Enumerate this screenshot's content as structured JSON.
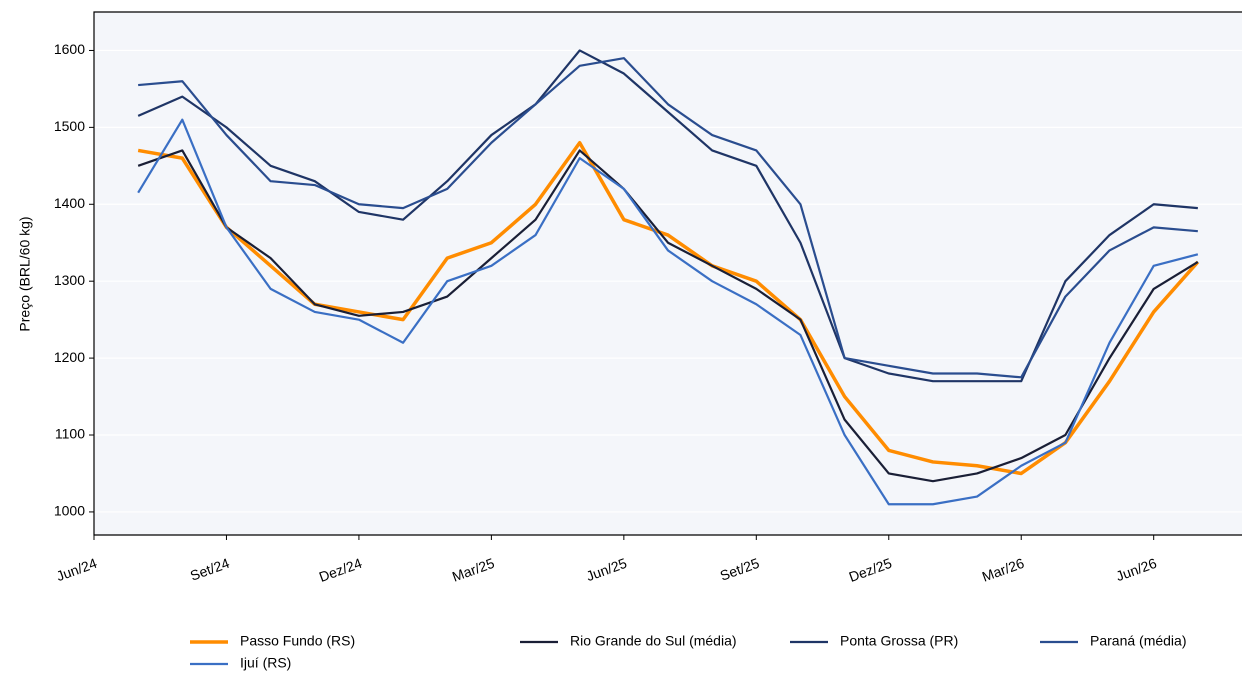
{
  "chart_data": {
    "type": "line",
    "y_label": "Preço (BRL/60 kg)",
    "x": [
      "2024-07",
      "2024-08",
      "2024-09",
      "2024-10",
      "2024-11",
      "2024-12",
      "2025-01",
      "2025-02",
      "2025-03",
      "2025-04",
      "2025-05",
      "2025-06",
      "2025-07",
      "2025-08",
      "2025-09",
      "2025-10",
      "2025-11",
      "2025-12",
      "2026-01",
      "2026-02",
      "2026-03",
      "2026-04",
      "2026-05",
      "2026-06",
      "2026-07"
    ],
    "series": [
      {
        "name": "Passo Fundo (RS)",
        "color": "#ff8c00",
        "values": [
          1470,
          1460,
          1370,
          1320,
          1270,
          1260,
          1250,
          1330,
          1350,
          1400,
          1480,
          1380,
          1360,
          1320,
          1300,
          1250,
          1150,
          1080,
          1065,
          1060,
          1050,
          1090,
          1170,
          1260,
          1325
        ]
      },
      {
        "name": "Rio Grande do Sul (média)",
        "color": "#1a1f36",
        "values": [
          1450,
          1470,
          1370,
          1330,
          1270,
          1255,
          1260,
          1280,
          1330,
          1380,
          1470,
          1420,
          1350,
          1320,
          1290,
          1250,
          1120,
          1050,
          1040,
          1050,
          1070,
          1100,
          1200,
          1290,
          1325
        ]
      },
      {
        "name": "Ponta Grossa (PR)",
        "color": "#1f3566",
        "values": [
          1515,
          1540,
          1500,
          1450,
          1430,
          1390,
          1380,
          1430,
          1490,
          1530,
          1600,
          1570,
          1520,
          1470,
          1450,
          1350,
          1200,
          1180,
          1170,
          1170,
          1170,
          1300,
          1360,
          1400,
          1395
        ]
      },
      {
        "name": "Paraná (média)",
        "color": "#2a4d8f",
        "values": [
          1555,
          1560,
          1490,
          1430,
          1425,
          1400,
          1395,
          1420,
          1480,
          1530,
          1580,
          1590,
          1530,
          1490,
          1470,
          1400,
          1200,
          1190,
          1180,
          1180,
          1175,
          1280,
          1340,
          1370,
          1365
        ]
      },
      {
        "name": "Ijuí (RS)",
        "color": "#3a6fc4",
        "values": [
          1415,
          1510,
          1370,
          1290,
          1260,
          1250,
          1220,
          1300,
          1320,
          1360,
          1460,
          1420,
          1340,
          1300,
          1270,
          1230,
          1100,
          1010,
          1010,
          1020,
          1060,
          1090,
          1220,
          1320,
          1335
        ]
      }
    ],
    "xlim": [
      "2024-06",
      "2026-08"
    ],
    "xticks": [
      {
        "value": "2024-06",
        "label": "Jun/24"
      },
      {
        "value": "2024-09",
        "label": "Set/24"
      },
      {
        "value": "2024-12",
        "label": "Dez/24"
      },
      {
        "value": "2025-03",
        "label": "Mar/25"
      },
      {
        "value": "2025-06",
        "label": "Jun/25"
      },
      {
        "value": "2025-09",
        "label": "Set/25"
      },
      {
        "value": "2025-12",
        "label": "Dez/25"
      },
      {
        "value": "2026-03",
        "label": "Mar/26"
      },
      {
        "value": "2026-06",
        "label": "Jun/26"
      }
    ],
    "ylim": [
      970,
      1650
    ],
    "yticks": [
      1000,
      1100,
      1200,
      1300,
      1400,
      1500,
      1600
    ],
    "grid": true,
    "legend": "bottom"
  }
}
